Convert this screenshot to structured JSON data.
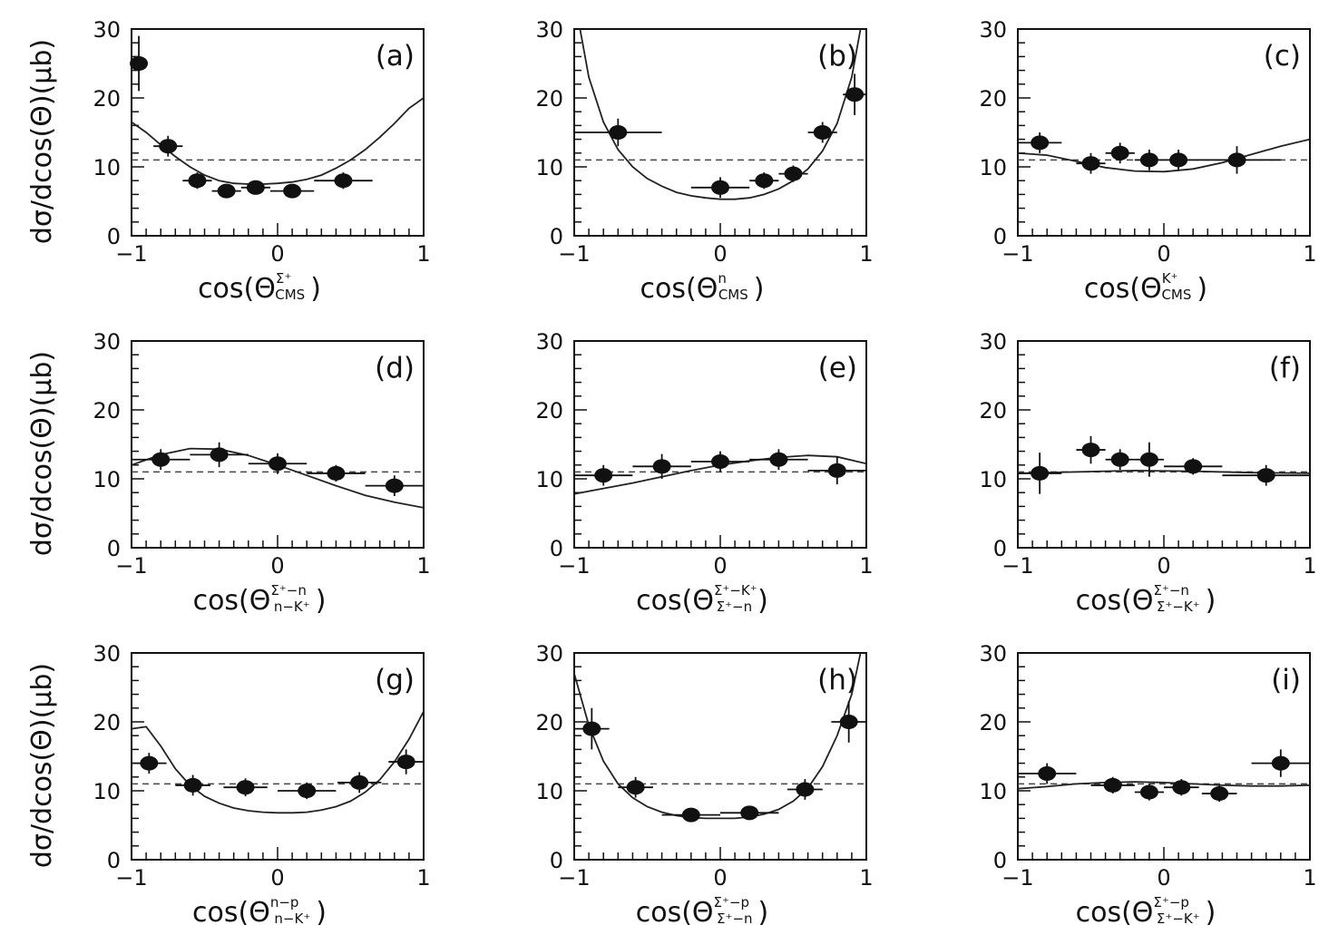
{
  "figure": {
    "ylabel": "dσ/dcos(Θ)(μb)"
  },
  "chart_data": [
    {
      "type": "scatter",
      "panel": "(a)",
      "xlabel": {
        "pre": "cos(Θ",
        "sup": "Σ⁺",
        "sub": "CMS",
        "post": ")"
      },
      "xlim": [
        -1,
        1
      ],
      "ylim": [
        0,
        30
      ],
      "xticks": [
        "−1",
        "0",
        "1"
      ],
      "yticks": [
        "0",
        "10",
        "20",
        "30"
      ],
      "reference_line": 11,
      "points": [
        {
          "x": -0.95,
          "y": 25,
          "xerr": 0.05,
          "yerr": 4
        },
        {
          "x": -0.75,
          "y": 13,
          "xerr": 0.1,
          "yerr": 1.5
        },
        {
          "x": -0.55,
          "y": 8,
          "xerr": 0.1,
          "yerr": 1.2
        },
        {
          "x": -0.35,
          "y": 6.5,
          "xerr": 0.1,
          "yerr": 1
        },
        {
          "x": -0.15,
          "y": 7,
          "xerr": 0.1,
          "yerr": 1
        },
        {
          "x": 0.1,
          "y": 6.5,
          "xerr": 0.15,
          "yerr": 1
        },
        {
          "x": 0.45,
          "y": 8,
          "xerr": 0.2,
          "yerr": 1.2
        }
      ],
      "curve": [
        [
          -1,
          16.5
        ],
        [
          -0.9,
          15
        ],
        [
          -0.8,
          13.2
        ],
        [
          -0.7,
          11.5
        ],
        [
          -0.6,
          10
        ],
        [
          -0.5,
          8.8
        ],
        [
          -0.4,
          8
        ],
        [
          -0.3,
          7.6
        ],
        [
          -0.2,
          7.5
        ],
        [
          -0.1,
          7.5
        ],
        [
          0,
          7.6
        ],
        [
          0.1,
          7.8
        ],
        [
          0.2,
          8.2
        ],
        [
          0.3,
          8.8
        ],
        [
          0.4,
          9.8
        ],
        [
          0.5,
          11
        ],
        [
          0.6,
          12.5
        ],
        [
          0.7,
          14.3
        ],
        [
          0.8,
          16.3
        ],
        [
          0.9,
          18.5
        ],
        [
          1,
          20
        ]
      ]
    },
    {
      "type": "scatter",
      "panel": "(b)",
      "xlabel": {
        "pre": "cos(Θ",
        "sup": "n",
        "sub": "CMS",
        "post": ")"
      },
      "xlim": [
        -1,
        1
      ],
      "ylim": [
        0,
        30
      ],
      "xticks": [
        "−1",
        "0",
        "1"
      ],
      "yticks": [
        "0",
        "10",
        "20",
        "30"
      ],
      "reference_line": 11,
      "points": [
        {
          "x": -0.7,
          "y": 15,
          "xerr": 0.3,
          "yerr": 2
        },
        {
          "x": 0,
          "y": 7,
          "xerr": 0.2,
          "yerr": 1.5
        },
        {
          "x": 0.3,
          "y": 8,
          "xerr": 0.1,
          "yerr": 1.2
        },
        {
          "x": 0.5,
          "y": 9,
          "xerr": 0.1,
          "yerr": 1.2
        },
        {
          "x": 0.7,
          "y": 15,
          "xerr": 0.1,
          "yerr": 1.5
        },
        {
          "x": 0.92,
          "y": 20.5,
          "xerr": 0.08,
          "yerr": 3
        }
      ],
      "curve": [
        [
          -0.96,
          30
        ],
        [
          -0.9,
          23
        ],
        [
          -0.8,
          16.5
        ],
        [
          -0.7,
          12.5
        ],
        [
          -0.6,
          10
        ],
        [
          -0.5,
          8.3
        ],
        [
          -0.4,
          7.2
        ],
        [
          -0.3,
          6.3
        ],
        [
          -0.2,
          5.8
        ],
        [
          -0.1,
          5.5
        ],
        [
          0,
          5.3
        ],
        [
          0.1,
          5.3
        ],
        [
          0.2,
          5.5
        ],
        [
          0.3,
          6
        ],
        [
          0.4,
          6.8
        ],
        [
          0.5,
          8
        ],
        [
          0.6,
          9.7
        ],
        [
          0.7,
          12.3
        ],
        [
          0.8,
          16.3
        ],
        [
          0.9,
          23
        ],
        [
          0.96,
          30
        ]
      ]
    },
    {
      "type": "scatter",
      "panel": "(c)",
      "xlabel": {
        "pre": "cos(Θ",
        "sup": "K⁺",
        "sub": "CMS",
        "post": ")"
      },
      "xlim": [
        -1,
        1
      ],
      "ylim": [
        0,
        30
      ],
      "xticks": [
        "−1",
        "0",
        "1"
      ],
      "yticks": [
        "0",
        "10",
        "20",
        "30"
      ],
      "reference_line": 11,
      "points": [
        {
          "x": -0.85,
          "y": 13.5,
          "xerr": 0.15,
          "yerr": 1.5
        },
        {
          "x": -0.5,
          "y": 10.5,
          "xerr": 0.1,
          "yerr": 1.5
        },
        {
          "x": -0.3,
          "y": 12,
          "xerr": 0.1,
          "yerr": 1.5
        },
        {
          "x": -0.1,
          "y": 11,
          "xerr": 0.1,
          "yerr": 1.5
        },
        {
          "x": 0.1,
          "y": 11,
          "xerr": 0.1,
          "yerr": 1.5
        },
        {
          "x": 0.5,
          "y": 11,
          "xerr": 0.3,
          "yerr": 2
        }
      ],
      "curve": [
        [
          -1,
          12
        ],
        [
          -0.8,
          11.7
        ],
        [
          -0.6,
          10.8
        ],
        [
          -0.4,
          9.9
        ],
        [
          -0.2,
          9.4
        ],
        [
          0,
          9.3
        ],
        [
          0.2,
          9.7
        ],
        [
          0.4,
          10.6
        ],
        [
          0.6,
          11.8
        ],
        [
          0.8,
          13
        ],
        [
          1,
          14
        ]
      ]
    },
    {
      "type": "scatter",
      "panel": "(d)",
      "xlabel": {
        "pre": "cos(Θ",
        "sup": "Σ⁺−n",
        "sub": "n−K⁺",
        "post": ")"
      },
      "xlim": [
        -1,
        1
      ],
      "ylim": [
        0,
        30
      ],
      "xticks": [
        "−1",
        "0",
        "1"
      ],
      "yticks": [
        "0",
        "10",
        "20",
        "30"
      ],
      "reference_line": 11,
      "points": [
        {
          "x": -0.8,
          "y": 12.8,
          "xerr": 0.2,
          "yerr": 1.5
        },
        {
          "x": -0.4,
          "y": 13.5,
          "xerr": 0.2,
          "yerr": 1.8
        },
        {
          "x": 0,
          "y": 12.2,
          "xerr": 0.2,
          "yerr": 1.5
        },
        {
          "x": 0.4,
          "y": 10.8,
          "xerr": 0.2,
          "yerr": 1.2
        },
        {
          "x": 0.8,
          "y": 9,
          "xerr": 0.2,
          "yerr": 1.5
        }
      ],
      "curve": [
        [
          -1,
          12
        ],
        [
          -0.8,
          13.5
        ],
        [
          -0.6,
          14.4
        ],
        [
          -0.4,
          14.3
        ],
        [
          -0.2,
          13.4
        ],
        [
          0,
          12
        ],
        [
          0.2,
          10.5
        ],
        [
          0.4,
          9
        ],
        [
          0.6,
          7.6
        ],
        [
          0.8,
          6.6
        ],
        [
          1,
          5.8
        ]
      ]
    },
    {
      "type": "scatter",
      "panel": "(e)",
      "xlabel": {
        "pre": "cos(Θ",
        "sup": "Σ⁺−K⁺",
        "sub": "Σ⁺−n",
        "post": ")"
      },
      "xlim": [
        -1,
        1
      ],
      "ylim": [
        0,
        30
      ],
      "xticks": [
        "−1",
        "0",
        "1"
      ],
      "yticks": [
        "0",
        "10",
        "20",
        "30"
      ],
      "reference_line": 11,
      "points": [
        {
          "x": -0.8,
          "y": 10.5,
          "xerr": 0.2,
          "yerr": 1.5
        },
        {
          "x": -0.4,
          "y": 11.8,
          "xerr": 0.2,
          "yerr": 1.8
        },
        {
          "x": 0,
          "y": 12.5,
          "xerr": 0.2,
          "yerr": 1.5
        },
        {
          "x": 0.4,
          "y": 12.8,
          "xerr": 0.2,
          "yerr": 1.5
        },
        {
          "x": 0.8,
          "y": 11.2,
          "xerr": 0.2,
          "yerr": 2
        }
      ],
      "curve": [
        [
          -1,
          7.8
        ],
        [
          -0.8,
          8.6
        ],
        [
          -0.6,
          9.4
        ],
        [
          -0.4,
          10.3
        ],
        [
          -0.2,
          11.2
        ],
        [
          0,
          12
        ],
        [
          0.2,
          12.6
        ],
        [
          0.4,
          13.1
        ],
        [
          0.6,
          13.4
        ],
        [
          0.8,
          13.2
        ],
        [
          1,
          12.2
        ]
      ]
    },
    {
      "type": "scatter",
      "panel": "(f)",
      "xlabel": {
        "pre": "cos(Θ",
        "sup": "Σ⁺−n",
        "sub": "Σ⁺−K⁺",
        "post": ")"
      },
      "xlim": [
        -1,
        1
      ],
      "ylim": [
        0,
        30
      ],
      "xticks": [
        "−1",
        "0",
        "1"
      ],
      "yticks": [
        "0",
        "10",
        "20",
        "30"
      ],
      "reference_line": 11,
      "points": [
        {
          "x": -0.85,
          "y": 10.8,
          "xerr": 0.15,
          "yerr": 3
        },
        {
          "x": -0.5,
          "y": 14.2,
          "xerr": 0.1,
          "yerr": 2
        },
        {
          "x": -0.3,
          "y": 12.8,
          "xerr": 0.1,
          "yerr": 1.5
        },
        {
          "x": -0.1,
          "y": 12.8,
          "xerr": 0.1,
          "yerr": 2.5
        },
        {
          "x": 0.2,
          "y": 11.8,
          "xerr": 0.2,
          "yerr": 1.2
        },
        {
          "x": 0.7,
          "y": 10.5,
          "xerr": 0.3,
          "yerr": 1.5
        }
      ],
      "curve": [
        [
          -1,
          10.8
        ],
        [
          -0.6,
          11
        ],
        [
          -0.2,
          11.2
        ],
        [
          0.2,
          11.1
        ],
        [
          0.6,
          10.9
        ],
        [
          1,
          10.8
        ]
      ]
    },
    {
      "type": "scatter",
      "panel": "(g)",
      "xlabel": {
        "pre": "cos(Θ",
        "sup": "n−p",
        "sub": "n−K⁺",
        "post": ")"
      },
      "xlim": [
        -1,
        1
      ],
      "ylim": [
        0,
        30
      ],
      "xticks": [
        "−1",
        "0",
        "1"
      ],
      "yticks": [
        "0",
        "10",
        "20",
        "30"
      ],
      "reference_line": 11,
      "points": [
        {
          "x": -0.88,
          "y": 14,
          "xerr": 0.12,
          "yerr": 1.5
        },
        {
          "x": -0.58,
          "y": 10.8,
          "xerr": 0.12,
          "yerr": 1.5
        },
        {
          "x": -0.22,
          "y": 10.5,
          "xerr": 0.15,
          "yerr": 1.3
        },
        {
          "x": 0.2,
          "y": 10,
          "xerr": 0.2,
          "yerr": 1.2
        },
        {
          "x": 0.56,
          "y": 11.2,
          "xerr": 0.15,
          "yerr": 1.5
        },
        {
          "x": 0.88,
          "y": 14.2,
          "xerr": 0.12,
          "yerr": 1.8
        }
      ],
      "curve": [
        [
          -1,
          19
        ],
        [
          -0.9,
          19.3
        ],
        [
          -0.8,
          16.5
        ],
        [
          -0.7,
          13.2
        ],
        [
          -0.6,
          10.8
        ],
        [
          -0.5,
          9.2
        ],
        [
          -0.4,
          8.2
        ],
        [
          -0.3,
          7.5
        ],
        [
          -0.2,
          7.1
        ],
        [
          -0.1,
          6.9
        ],
        [
          0,
          6.8
        ],
        [
          0.1,
          6.8
        ],
        [
          0.2,
          6.9
        ],
        [
          0.3,
          7.2
        ],
        [
          0.4,
          7.7
        ],
        [
          0.5,
          8.5
        ],
        [
          0.6,
          9.8
        ],
        [
          0.7,
          11.6
        ],
        [
          0.8,
          14.2
        ],
        [
          0.9,
          17.5
        ],
        [
          1,
          21.5
        ]
      ]
    },
    {
      "type": "scatter",
      "panel": "(h)",
      "xlabel": {
        "pre": "cos(Θ",
        "sup": "Σ⁺−p",
        "sub": "Σ⁺−n",
        "post": ")"
      },
      "xlim": [
        -1,
        1
      ],
      "ylim": [
        0,
        30
      ],
      "xticks": [
        "−1",
        "0",
        "1"
      ],
      "yticks": [
        "0",
        "10",
        "20",
        "30"
      ],
      "reference_line": 11,
      "points": [
        {
          "x": -0.88,
          "y": 19,
          "xerr": 0.12,
          "yerr": 3
        },
        {
          "x": -0.58,
          "y": 10.5,
          "xerr": 0.12,
          "yerr": 1.5
        },
        {
          "x": -0.2,
          "y": 6.5,
          "xerr": 0.2,
          "yerr": 0.8
        },
        {
          "x": 0.2,
          "y": 6.8,
          "xerr": 0.2,
          "yerr": 0.8
        },
        {
          "x": 0.58,
          "y": 10.2,
          "xerr": 0.12,
          "yerr": 1.5
        },
        {
          "x": 0.88,
          "y": 20,
          "xerr": 0.12,
          "yerr": 3
        }
      ],
      "curve": [
        [
          -1,
          27
        ],
        [
          -0.9,
          19.5
        ],
        [
          -0.8,
          14.3
        ],
        [
          -0.7,
          11
        ],
        [
          -0.6,
          9
        ],
        [
          -0.5,
          7.7
        ],
        [
          -0.4,
          6.9
        ],
        [
          -0.3,
          6.4
        ],
        [
          -0.2,
          6.1
        ],
        [
          -0.1,
          6
        ],
        [
          0,
          6
        ],
        [
          0.1,
          6
        ],
        [
          0.2,
          6.2
        ],
        [
          0.3,
          6.6
        ],
        [
          0.4,
          7.3
        ],
        [
          0.5,
          8.5
        ],
        [
          0.6,
          10.4
        ],
        [
          0.7,
          13.5
        ],
        [
          0.8,
          18
        ],
        [
          0.9,
          24
        ],
        [
          0.96,
          30
        ]
      ]
    },
    {
      "type": "scatter",
      "panel": "(i)",
      "xlabel": {
        "pre": "cos(Θ",
        "sup": "Σ⁺−p",
        "sub": "Σ⁺−K⁺",
        "post": ")"
      },
      "xlim": [
        -1,
        1
      ],
      "ylim": [
        0,
        30
      ],
      "xticks": [
        "−1",
        "0",
        "1"
      ],
      "yticks": [
        "0",
        "10",
        "20",
        "30"
      ],
      "reference_line": 11,
      "points": [
        {
          "x": -0.8,
          "y": 12.5,
          "xerr": 0.2,
          "yerr": 1.5
        },
        {
          "x": -0.35,
          "y": 10.8,
          "xerr": 0.15,
          "yerr": 1.2
        },
        {
          "x": -0.1,
          "y": 9.8,
          "xerr": 0.1,
          "yerr": 1.2
        },
        {
          "x": 0.12,
          "y": 10.5,
          "xerr": 0.12,
          "yerr": 1.2
        },
        {
          "x": 0.38,
          "y": 9.6,
          "xerr": 0.12,
          "yerr": 1.2
        },
        {
          "x": 0.8,
          "y": 14,
          "xerr": 0.2,
          "yerr": 2
        }
      ],
      "curve": [
        [
          -1,
          10.3
        ],
        [
          -0.8,
          10.6
        ],
        [
          -0.6,
          11
        ],
        [
          -0.4,
          11.2
        ],
        [
          -0.2,
          11.3
        ],
        [
          0,
          11.2
        ],
        [
          0.2,
          11
        ],
        [
          0.4,
          10.8
        ],
        [
          0.6,
          10.7
        ],
        [
          0.8,
          10.7
        ],
        [
          1,
          10.8
        ]
      ]
    }
  ]
}
